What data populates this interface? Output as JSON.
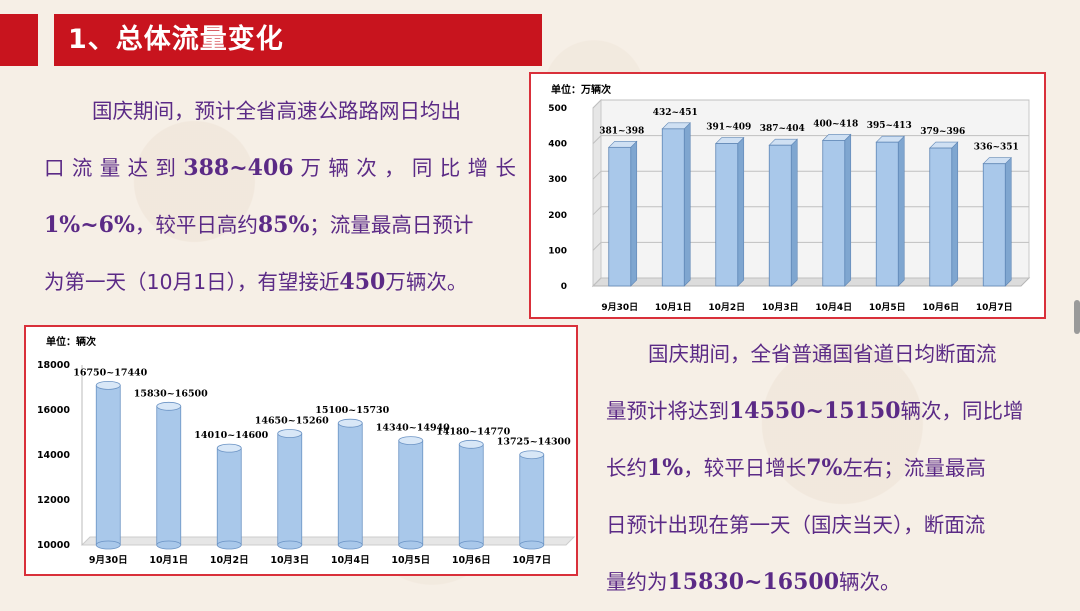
{
  "header": {
    "title": "1、总体流量变化"
  },
  "paragraph1": {
    "lines": [
      [
        "国庆期间，预计全省高速公路路网日均出"
      ],
      [
        "口 流 量 达 到 ",
        "388~406",
        " 万 辆 次 ， 同 比 增 长"
      ],
      [
        "1%~6%",
        "，较平日高约",
        "85%",
        "；流量最高日预计"
      ],
      [
        "为第一天（10月1日），有望接近",
        "450",
        "万辆次。"
      ]
    ]
  },
  "paragraph2": {
    "lines": [
      [
        "国庆期间，全省普通国省道日均断面流"
      ],
      [
        "量预计将达到",
        "14550~15150",
        "辆次，同比增"
      ],
      [
        "长约",
        "1%",
        "，较平日增长",
        "7%",
        "左右；流量最高"
      ],
      [
        "日预计出现在第一天（国庆当天），断面流"
      ],
      [
        "量约为",
        "15830~16500",
        "辆次。"
      ]
    ]
  },
  "chart_data": [
    {
      "type": "bar",
      "unit_label": "单位：万辆次",
      "categories": [
        "9月30日",
        "10月1日",
        "10月2日",
        "10月3日",
        "10月4日",
        "10月5日",
        "10月6日",
        "10月7日"
      ],
      "data_labels": [
        "381~398",
        "432~451",
        "391~409",
        "387~404",
        "400~418",
        "395~413",
        "379~396",
        "336~351"
      ],
      "values": [
        389.5,
        441.5,
        400,
        395.5,
        409,
        404,
        387.5,
        343.5
      ],
      "ylim": [
        0,
        500
      ],
      "yticks": [
        "0",
        "100",
        "200",
        "300",
        "400",
        "500"
      ],
      "bar_color": "#a9c8ea",
      "grid": true
    },
    {
      "type": "bar",
      "unit_label": "单位：辆次",
      "categories": [
        "9月30日",
        "10月1日",
        "10月2日",
        "10月3日",
        "10月4日",
        "10月5日",
        "10月6日",
        "10月7日"
      ],
      "data_labels": [
        "16750~17440",
        "15830~16500",
        "14010~14600",
        "14650~15260",
        "15100~15730",
        "14340~14940",
        "14180~14770",
        "13725~14300"
      ],
      "values": [
        17095,
        16165,
        14305,
        14955,
        15415,
        14640,
        14475,
        14012.5
      ],
      "ylim": [
        10000,
        18000
      ],
      "yticks": [
        "10000",
        "12000",
        "14000",
        "16000",
        "18000"
      ],
      "bar_color": "#a9c8ea",
      "grid": false
    }
  ],
  "colors": {
    "accent_red": "#c8141e",
    "text_purple": "#5b2a86"
  }
}
